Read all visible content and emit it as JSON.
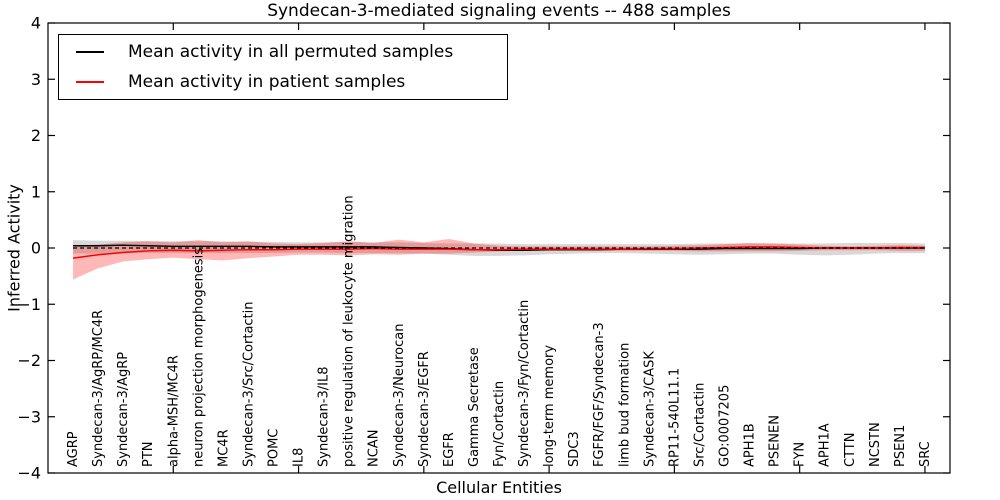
{
  "chart_data": {
    "type": "line",
    "title": "Syndecan-3-mediated signaling events -- 488 samples",
    "xlabel": "Cellular Entities",
    "ylabel": "Inferred Activity",
    "ylim": [
      -4,
      4
    ],
    "yticks": [
      -4,
      -3,
      -2,
      -1,
      0,
      1,
      2,
      3,
      4
    ],
    "xlim": [
      0,
      36
    ],
    "xticks": [
      5,
      10,
      15,
      20,
      25,
      30,
      35
    ],
    "grid": false,
    "legend_position": "upper left",
    "categories": [
      "AGRP",
      "Syndecan-3/AgRP/MC4R",
      "Syndecan-3/AgRP",
      "PTN",
      "alpha-MSH/MC4R",
      "neuron projection morphogenesis",
      "MC4R",
      "Syndecan-3/Src/Cortactin",
      "POMC",
      "IL8",
      "Syndecan-3/IL8",
      "positive regulation of leukocyte migration",
      "NCAN",
      "Syndecan-3/Neurocan",
      "Syndecan-3/EGFR",
      "EGFR",
      "Gamma Secretase",
      "Fyn/Cortactin",
      "Syndecan-3/Fyn/Cortactin",
      "long-term memory",
      "SDC3",
      "FGFR/FGF/Syndecan-3",
      "limb bud formation",
      "Syndecan-3/CASK",
      "RP11-540L11.1",
      "Src/Cortactin",
      "GO:0007205",
      "APH1B",
      "PSENEN",
      "FYN",
      "APH1A",
      "CTTN",
      "NCSTN",
      "PSEN1",
      "SRC"
    ],
    "zero_line": {
      "y": 0,
      "style": "dashed",
      "color": "#000000"
    },
    "series": [
      {
        "name": "Mean activity in all permuted samples",
        "color": "#000000",
        "width": 1.4,
        "values": [
          0.04,
          0.04,
          0.05,
          0.04,
          0.03,
          0.03,
          0.03,
          0.03,
          0.02,
          0.02,
          0.02,
          0.02,
          0.02,
          0.01,
          0.0,
          -0.01,
          -0.03,
          -0.04,
          -0.04,
          -0.03,
          -0.03,
          -0.03,
          -0.02,
          -0.02,
          -0.02,
          -0.02,
          -0.01,
          -0.01,
          -0.01,
          -0.01,
          0.0,
          0.0,
          0.0,
          0.0,
          0.0
        ],
        "band": {
          "color": "#999999",
          "opacity": 0.38,
          "upper": [
            0.14,
            0.13,
            0.13,
            0.12,
            0.12,
            0.12,
            0.12,
            0.11,
            0.11,
            0.1,
            0.1,
            0.11,
            0.1,
            0.1,
            0.09,
            0.08,
            0.08,
            0.08,
            0.07,
            0.07,
            0.07,
            0.07,
            0.07,
            0.07,
            0.07,
            0.08,
            0.08,
            0.08,
            0.08,
            0.08,
            0.08,
            0.09,
            0.09,
            0.09,
            0.08
          ],
          "lower": [
            -0.1,
            -0.1,
            -0.09,
            -0.09,
            -0.09,
            -0.09,
            -0.09,
            -0.09,
            -0.09,
            -0.08,
            -0.08,
            -0.09,
            -0.09,
            -0.09,
            -0.1,
            -0.12,
            -0.14,
            -0.14,
            -0.13,
            -0.11,
            -0.1,
            -0.09,
            -0.09,
            -0.1,
            -0.11,
            -0.12,
            -0.11,
            -0.1,
            -0.1,
            -0.12,
            -0.13,
            -0.12,
            -0.1,
            -0.09,
            -0.09
          ]
        }
      },
      {
        "name": "Mean activity in patient samples",
        "color": "#ff0000",
        "width": 1.5,
        "values": [
          -0.18,
          -0.12,
          -0.08,
          -0.05,
          -0.04,
          -0.05,
          -0.04,
          -0.03,
          -0.03,
          -0.02,
          -0.02,
          -0.02,
          -0.01,
          -0.02,
          -0.02,
          -0.02,
          -0.03,
          -0.03,
          -0.02,
          -0.02,
          -0.02,
          -0.02,
          -0.02,
          -0.01,
          -0.01,
          0.0,
          0.01,
          0.02,
          0.02,
          0.01,
          0.0,
          0.0,
          0.0,
          0.01,
          0.01
        ],
        "band": {
          "color": "#ff0000",
          "opacity": 0.28,
          "upper": [
            0.04,
            0.06,
            0.1,
            0.12,
            0.1,
            0.14,
            0.1,
            0.12,
            0.08,
            0.07,
            0.09,
            0.12,
            0.09,
            0.15,
            0.1,
            0.16,
            0.08,
            0.04,
            0.03,
            0.03,
            0.03,
            0.03,
            0.03,
            0.03,
            0.04,
            0.05,
            0.07,
            0.09,
            0.08,
            0.06,
            0.04,
            0.03,
            0.04,
            0.05,
            0.04
          ],
          "lower": [
            -0.56,
            -0.36,
            -0.24,
            -0.2,
            -0.17,
            -0.2,
            -0.22,
            -0.18,
            -0.15,
            -0.12,
            -0.12,
            -0.13,
            -0.11,
            -0.12,
            -0.1,
            -0.1,
            -0.08,
            -0.06,
            -0.05,
            -0.05,
            -0.05,
            -0.05,
            -0.05,
            -0.05,
            -0.05,
            -0.06,
            -0.06,
            -0.06,
            -0.06,
            -0.05,
            -0.04,
            -0.04,
            -0.04,
            -0.05,
            -0.05
          ]
        }
      }
    ]
  }
}
